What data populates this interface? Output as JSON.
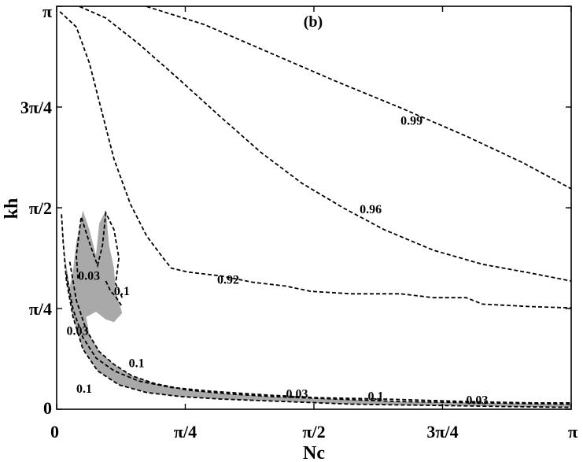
{
  "chart_data": {
    "type": "contour",
    "panel_label": "(b)",
    "xlabel": "Nc",
    "ylabel": "kh",
    "xlim": [
      0,
      3.14159
    ],
    "ylim": [
      0,
      3.14159
    ],
    "x_ticks": [
      {
        "value": 0,
        "label": "0"
      },
      {
        "value": 0.7854,
        "label": "π/4"
      },
      {
        "value": 1.5708,
        "label": "π/2"
      },
      {
        "value": 2.3562,
        "label": "3π/4"
      },
      {
        "value": 3.14159,
        "label": "π"
      }
    ],
    "y_ticks": [
      {
        "value": 0,
        "label": "0"
      },
      {
        "value": 0.7854,
        "label": "π/4"
      },
      {
        "value": 1.5708,
        "label": "π/2"
      },
      {
        "value": 2.3562,
        "label": "3π/4"
      },
      {
        "value": 3.14159,
        "label": "π"
      }
    ],
    "contours": [
      {
        "level": "0.99",
        "label_pos": [
          2.1,
          2.25
        ],
        "points": [
          [
            0.55,
            3.14
          ],
          [
            0.9,
            3.0
          ],
          [
            1.3,
            2.78
          ],
          [
            1.7,
            2.56
          ],
          [
            2.1,
            2.35
          ],
          [
            2.5,
            2.13
          ],
          [
            2.85,
            1.92
          ],
          [
            3.14,
            1.72
          ]
        ]
      },
      {
        "level": "0.96",
        "label_pos": [
          1.85,
          1.56
        ],
        "points": [
          [
            0.14,
            3.14
          ],
          [
            0.3,
            3.05
          ],
          [
            0.5,
            2.85
          ],
          [
            0.75,
            2.57
          ],
          [
            1.0,
            2.28
          ],
          [
            1.25,
            2.0
          ],
          [
            1.5,
            1.76
          ],
          [
            1.75,
            1.57
          ],
          [
            2.0,
            1.4
          ],
          [
            2.3,
            1.24
          ],
          [
            2.6,
            1.13
          ],
          [
            2.9,
            1.06
          ],
          [
            3.14,
            1.0
          ]
        ]
      },
      {
        "level": "0.92",
        "label_pos": [
          0.98,
          1.01
        ],
        "points": [
          [
            0.02,
            3.1
          ],
          [
            0.12,
            2.98
          ],
          [
            0.2,
            2.7
          ],
          [
            0.27,
            2.35
          ],
          [
            0.35,
            1.95
          ],
          [
            0.45,
            1.6
          ],
          [
            0.55,
            1.35
          ],
          [
            0.65,
            1.18
          ],
          [
            0.7,
            1.1
          ],
          [
            0.8,
            1.07
          ],
          [
            1.0,
            1.04
          ],
          [
            1.2,
            0.99
          ],
          [
            1.4,
            0.96
          ],
          [
            1.55,
            0.92
          ],
          [
            1.8,
            0.9
          ],
          [
            2.1,
            0.9
          ],
          [
            2.3,
            0.87
          ],
          [
            2.5,
            0.87
          ],
          [
            2.6,
            0.82
          ],
          [
            2.9,
            0.8
          ],
          [
            3.14,
            0.79
          ]
        ]
      },
      {
        "level": "0.1 (outer)",
        "label_pos": [
          0.1,
          0.17
        ],
        "points": [
          [
            0.03,
            1.52
          ],
          [
            0.04,
            1.3
          ],
          [
            0.06,
            1.0
          ],
          [
            0.1,
            0.72
          ],
          [
            0.16,
            0.47
          ],
          [
            0.25,
            0.3
          ],
          [
            0.38,
            0.19
          ],
          [
            0.55,
            0.13
          ],
          [
            0.75,
            0.1
          ],
          [
            1.0,
            0.08
          ],
          [
            1.4,
            0.06
          ],
          [
            1.8,
            0.04
          ],
          [
            2.3,
            0.03
          ],
          [
            2.8,
            0.02
          ],
          [
            3.14,
            0.015
          ]
        ]
      },
      {
        "level": "0.1 (inner)",
        "label_pos": [
          0.45,
          0.37
        ],
        "points": [
          [
            0.08,
            1.15
          ],
          [
            0.12,
            0.85
          ],
          [
            0.18,
            0.62
          ],
          [
            0.26,
            0.45
          ],
          [
            0.35,
            0.35
          ],
          [
            0.46,
            0.26
          ],
          [
            0.6,
            0.2
          ],
          [
            0.8,
            0.15
          ],
          [
            1.05,
            0.12
          ],
          [
            1.3,
            0.1
          ],
          [
            1.7,
            0.08
          ],
          [
            2.1,
            0.06
          ],
          [
            2.6,
            0.05
          ],
          [
            3.14,
            0.04
          ]
        ]
      },
      {
        "level": "0.03",
        "label_pos": [
          0.17,
          0.62
        ],
        "points": [
          [
            0.06,
            1.05
          ],
          [
            0.1,
            0.78
          ],
          [
            0.16,
            0.56
          ],
          [
            0.24,
            0.4
          ],
          [
            0.35,
            0.3
          ],
          [
            0.5,
            0.22
          ],
          [
            0.7,
            0.17
          ],
          [
            0.95,
            0.14
          ],
          [
            1.3,
            0.11
          ],
          [
            1.6,
            0.09
          ],
          [
            2.0,
            0.08
          ],
          [
            2.5,
            0.06
          ],
          [
            2.9,
            0.05
          ],
          [
            3.14,
            0.05
          ]
        ]
      },
      {
        "level": "0.03 (lobe)",
        "label_pos": [
          0.2,
          1.04
        ],
        "points": [
          [
            0.13,
            1.02
          ],
          [
            0.12,
            1.2
          ],
          [
            0.15,
            1.5
          ],
          [
            0.2,
            1.3
          ],
          [
            0.25,
            1.12
          ],
          [
            0.28,
            1.28
          ],
          [
            0.3,
            1.53
          ],
          [
            0.35,
            1.4
          ],
          [
            0.38,
            1.18
          ],
          [
            0.36,
            0.98
          ],
          [
            0.4,
            0.87
          ]
        ]
      },
      {
        "level": "0.1 (lobe)",
        "label_pos": [
          0.4,
          0.94
        ],
        "points": [
          [
            0.3,
            1.0
          ],
          [
            0.33,
            0.92
          ],
          [
            0.36,
            0.88
          ],
          [
            0.4,
            0.8
          ]
        ]
      }
    ],
    "contour_labels": [
      {
        "text": "0.99",
        "x": 2.1,
        "y": 2.25
      },
      {
        "text": "0.96",
        "x": 1.85,
        "y": 1.56
      },
      {
        "text": "0.92",
        "x": 0.98,
        "y": 1.01
      },
      {
        "text": "0.03",
        "x": 0.13,
        "y": 1.04
      },
      {
        "text": "0.1",
        "x": 0.35,
        "y": 0.92
      },
      {
        "text": "0.03",
        "x": 0.06,
        "y": 0.61
      },
      {
        "text": "0.1",
        "x": 0.44,
        "y": 0.36
      },
      {
        "text": "0.1",
        "x": 0.12,
        "y": 0.16
      },
      {
        "text": "0.03",
        "x": 1.4,
        "y": 0.12
      },
      {
        "text": "0.1",
        "x": 1.9,
        "y": 0.1
      },
      {
        "text": "0.03",
        "x": 2.5,
        "y": 0.07
      }
    ],
    "shaded_region": {
      "color": "#a9a9a9",
      "outer": [
        [
          0.03,
          1.52
        ],
        [
          0.04,
          1.3
        ],
        [
          0.06,
          1.0
        ],
        [
          0.1,
          0.72
        ],
        [
          0.16,
          0.47
        ],
        [
          0.25,
          0.3
        ],
        [
          0.38,
          0.19
        ],
        [
          0.55,
          0.13
        ],
        [
          0.75,
          0.1
        ],
        [
          1.0,
          0.08
        ],
        [
          1.4,
          0.06
        ],
        [
          1.8,
          0.04
        ],
        [
          2.3,
          0.03
        ],
        [
          2.8,
          0.02
        ],
        [
          3.14,
          0.015
        ],
        [
          3.14,
          0.04
        ],
        [
          2.6,
          0.05
        ],
        [
          2.1,
          0.06
        ],
        [
          1.7,
          0.08
        ],
        [
          1.3,
          0.1
        ],
        [
          1.05,
          0.12
        ],
        [
          0.8,
          0.15
        ],
        [
          0.6,
          0.2
        ],
        [
          0.46,
          0.26
        ],
        [
          0.35,
          0.35
        ],
        [
          0.26,
          0.45
        ],
        [
          0.2,
          0.58
        ],
        [
          0.18,
          0.72
        ],
        [
          0.24,
          0.76
        ],
        [
          0.3,
          0.7
        ],
        [
          0.35,
          0.68
        ],
        [
          0.4,
          0.75
        ],
        [
          0.36,
          0.92
        ],
        [
          0.35,
          1.1
        ],
        [
          0.32,
          1.28
        ],
        [
          0.3,
          1.55
        ],
        [
          0.26,
          1.45
        ],
        [
          0.24,
          1.2
        ],
        [
          0.2,
          1.4
        ],
        [
          0.16,
          1.55
        ],
        [
          0.12,
          1.3
        ],
        [
          0.1,
          1.08
        ],
        [
          0.08,
          0.95
        ],
        [
          0.05,
          1.2
        ],
        [
          0.03,
          1.52
        ]
      ]
    }
  }
}
